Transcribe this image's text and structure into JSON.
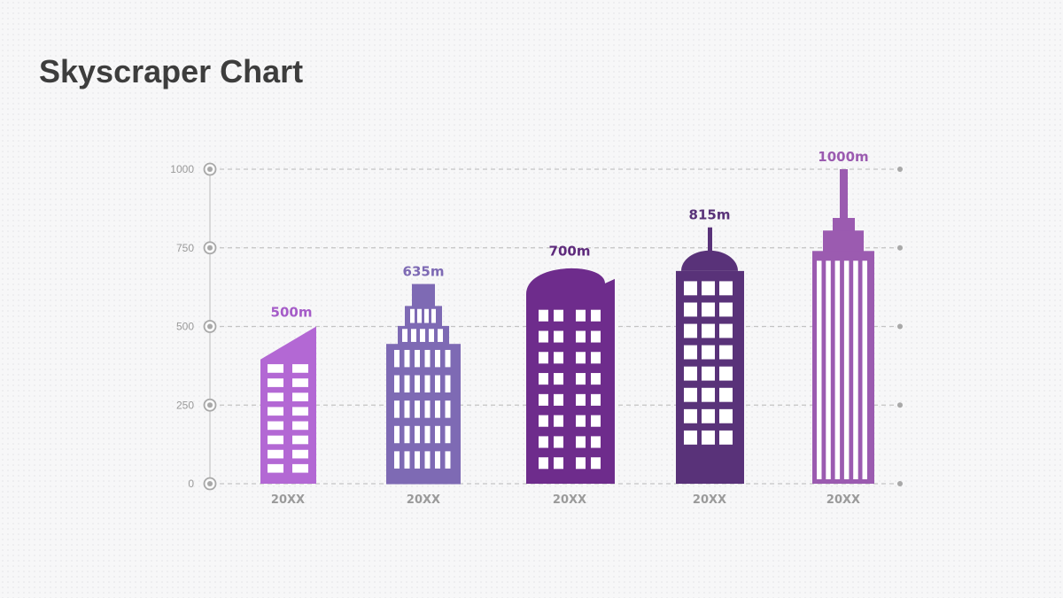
{
  "chart_data": {
    "type": "bar",
    "title": "Skyscraper Chart",
    "categories": [
      "20XX",
      "20XX",
      "20XX",
      "20XX",
      "20XX"
    ],
    "values": [
      500,
      635,
      700,
      815,
      1000
    ],
    "value_labels": [
      "500m",
      "635m",
      "700m",
      "815m",
      "1000m"
    ],
    "y_ticks": [
      0,
      250,
      500,
      750,
      1000
    ],
    "y_tick_labels": [
      "0",
      "250",
      "500",
      "750",
      "1000"
    ],
    "ylim": [
      0,
      1000
    ],
    "xlabel": "",
    "ylabel": "",
    "grid": true,
    "colors": [
      "#b368d4",
      "#7e6ab4",
      "#6e2c8c",
      "#593279",
      "#9b5bb0"
    ],
    "label_colors": [
      "#a55cc8",
      "#7e6ab4",
      "#5e2a7c",
      "#593279",
      "#9b5bb0"
    ]
  }
}
